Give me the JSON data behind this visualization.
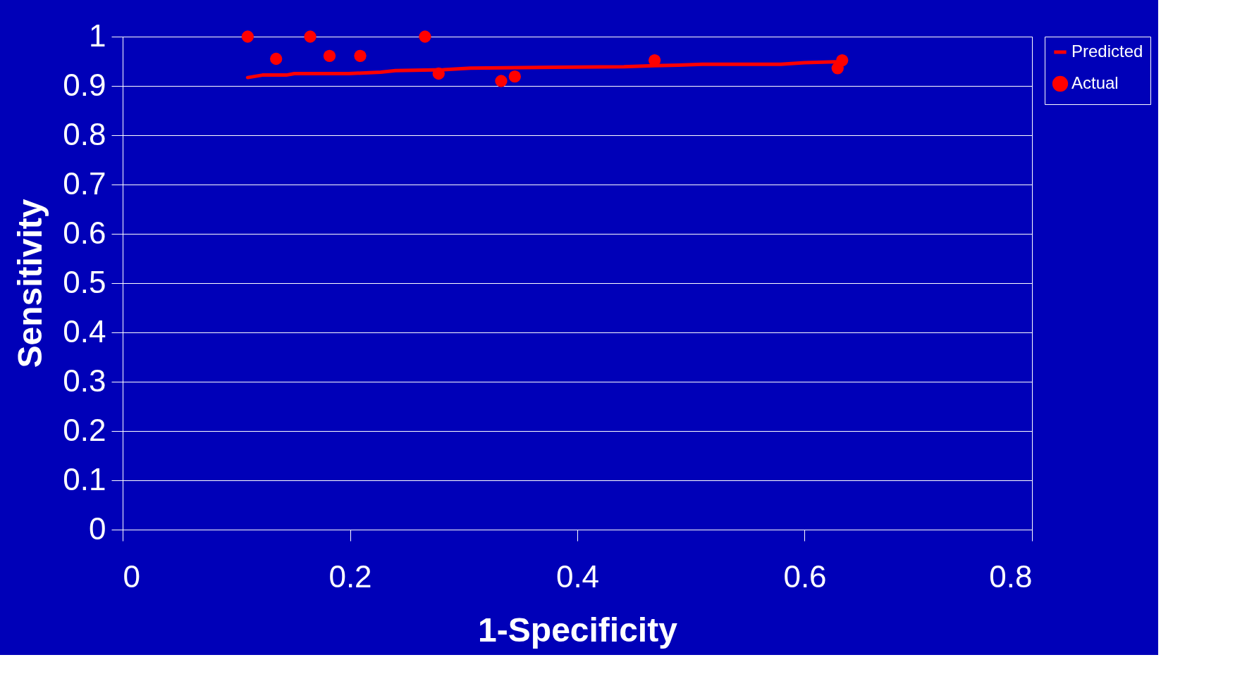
{
  "chart_data": {
    "type": "scatter",
    "xlabel": "1-Specificity",
    "ylabel": "Sensitivity",
    "xlim": [
      0,
      0.8
    ],
    "xticks": [
      0,
      0.2,
      0.4,
      0.6,
      0.8
    ],
    "ylim": [
      0,
      1
    ],
    "yticks": [
      0,
      0.1,
      0.2,
      0.3,
      0.4,
      0.5,
      0.6,
      0.7,
      0.8,
      0.9,
      1
    ],
    "grid": "y",
    "legend": "right",
    "series": [
      {
        "name": "Predicted",
        "type": "line",
        "color": "#ff0000",
        "x": [
          0.11,
          0.123,
          0.144,
          0.151,
          0.199,
          0.227,
          0.24,
          0.282,
          0.306,
          0.379,
          0.441,
          0.468,
          0.489,
          0.51,
          0.579,
          0.6,
          0.627
        ],
        "values": [
          0.917,
          0.922,
          0.922,
          0.925,
          0.925,
          0.928,
          0.931,
          0.933,
          0.936,
          0.938,
          0.939,
          0.941,
          0.942,
          0.944,
          0.944,
          0.947,
          0.949
        ]
      },
      {
        "name": "Actual",
        "color": "#ff0000",
        "x": [
          0.11,
          0.135,
          0.165,
          0.182,
          0.209,
          0.266,
          0.278,
          0.333,
          0.345,
          0.468,
          0.629,
          0.633
        ],
        "values": [
          1.0,
          0.955,
          1.0,
          0.961,
          0.961,
          1.0,
          0.925,
          0.91,
          0.919,
          0.952,
          0.936,
          0.952
        ]
      }
    ]
  }
}
